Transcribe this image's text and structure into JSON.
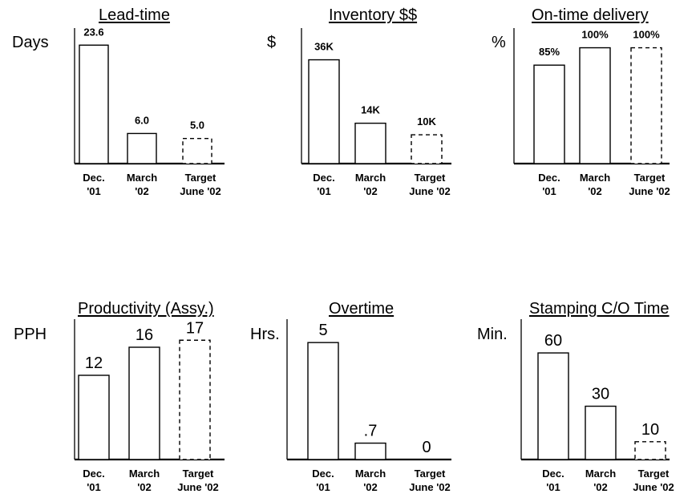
{
  "chart_data": [
    {
      "type": "bar",
      "title": "Lead-time",
      "ylabel": "Days",
      "categories": [
        [
          "Dec.",
          "'01"
        ],
        [
          "March",
          "'02"
        ],
        [
          "Target",
          "June '02"
        ]
      ],
      "values": [
        23.6,
        6.0,
        5.0
      ],
      "data_labels": [
        "23.6",
        "6.0",
        "5.0"
      ],
      "target_dashed": [
        false,
        false,
        true
      ],
      "ylim": [
        0,
        27
      ],
      "label_style": "bold-small"
    },
    {
      "type": "bar",
      "title": "Inventory $$",
      "ylabel": "$",
      "categories": [
        [
          "Dec.",
          "'01"
        ],
        [
          "March",
          "'02"
        ],
        [
          "Target",
          "June '02"
        ]
      ],
      "values": [
        36,
        14,
        10
      ],
      "data_labels": [
        "36K",
        "14K",
        "10K"
      ],
      "target_dashed": [
        false,
        false,
        true
      ],
      "ylim": [
        0,
        47
      ],
      "label_style": "bold-small"
    },
    {
      "type": "bar",
      "title": "On-time delivery",
      "ylabel": "%",
      "categories": [
        [
          "Dec.",
          "'01"
        ],
        [
          "March",
          "'02"
        ],
        [
          "Target",
          "June '02"
        ]
      ],
      "values": [
        85,
        100,
        100
      ],
      "data_labels": [
        "85%",
        "100%",
        "100%"
      ],
      "target_dashed": [
        false,
        false,
        true
      ],
      "ylim": [
        0,
        117
      ],
      "label_style": "bold-small"
    },
    {
      "type": "bar",
      "title": "Productivity (Assy.)",
      "ylabel": "PPH",
      "categories": [
        [
          "Dec.",
          "'01"
        ],
        [
          "March",
          "'02"
        ],
        [
          "Target",
          "June '02"
        ]
      ],
      "values": [
        12,
        16,
        17
      ],
      "data_labels": [
        "12",
        "16",
        "17"
      ],
      "target_dashed": [
        false,
        false,
        true
      ],
      "ylim": [
        0,
        20
      ],
      "label_style": "regular-large"
    },
    {
      "type": "bar",
      "title": "Overtime",
      "ylabel": "Hrs.",
      "categories": [
        [
          "Dec.",
          "'01"
        ],
        [
          "March",
          "'02"
        ],
        [
          "Target",
          "June '02"
        ]
      ],
      "values": [
        5,
        0.7,
        0
      ],
      "data_labels": [
        "5",
        ".7",
        "0"
      ],
      "target_dashed": [
        false,
        false,
        true
      ],
      "ylim": [
        0,
        6
      ],
      "label_style": "regular-large"
    },
    {
      "type": "bar",
      "title": "Stamping C/O Time",
      "ylabel": "Min.",
      "categories": [
        [
          "Dec.",
          "'01"
        ],
        [
          "March",
          "'02"
        ],
        [
          "Target",
          "June '02"
        ]
      ],
      "values": [
        60,
        30,
        10
      ],
      "data_labels": [
        "60",
        "30",
        "10"
      ],
      "target_dashed": [
        false,
        false,
        true
      ],
      "ylim": [
        0,
        79
      ],
      "label_style": "regular-large"
    }
  ]
}
